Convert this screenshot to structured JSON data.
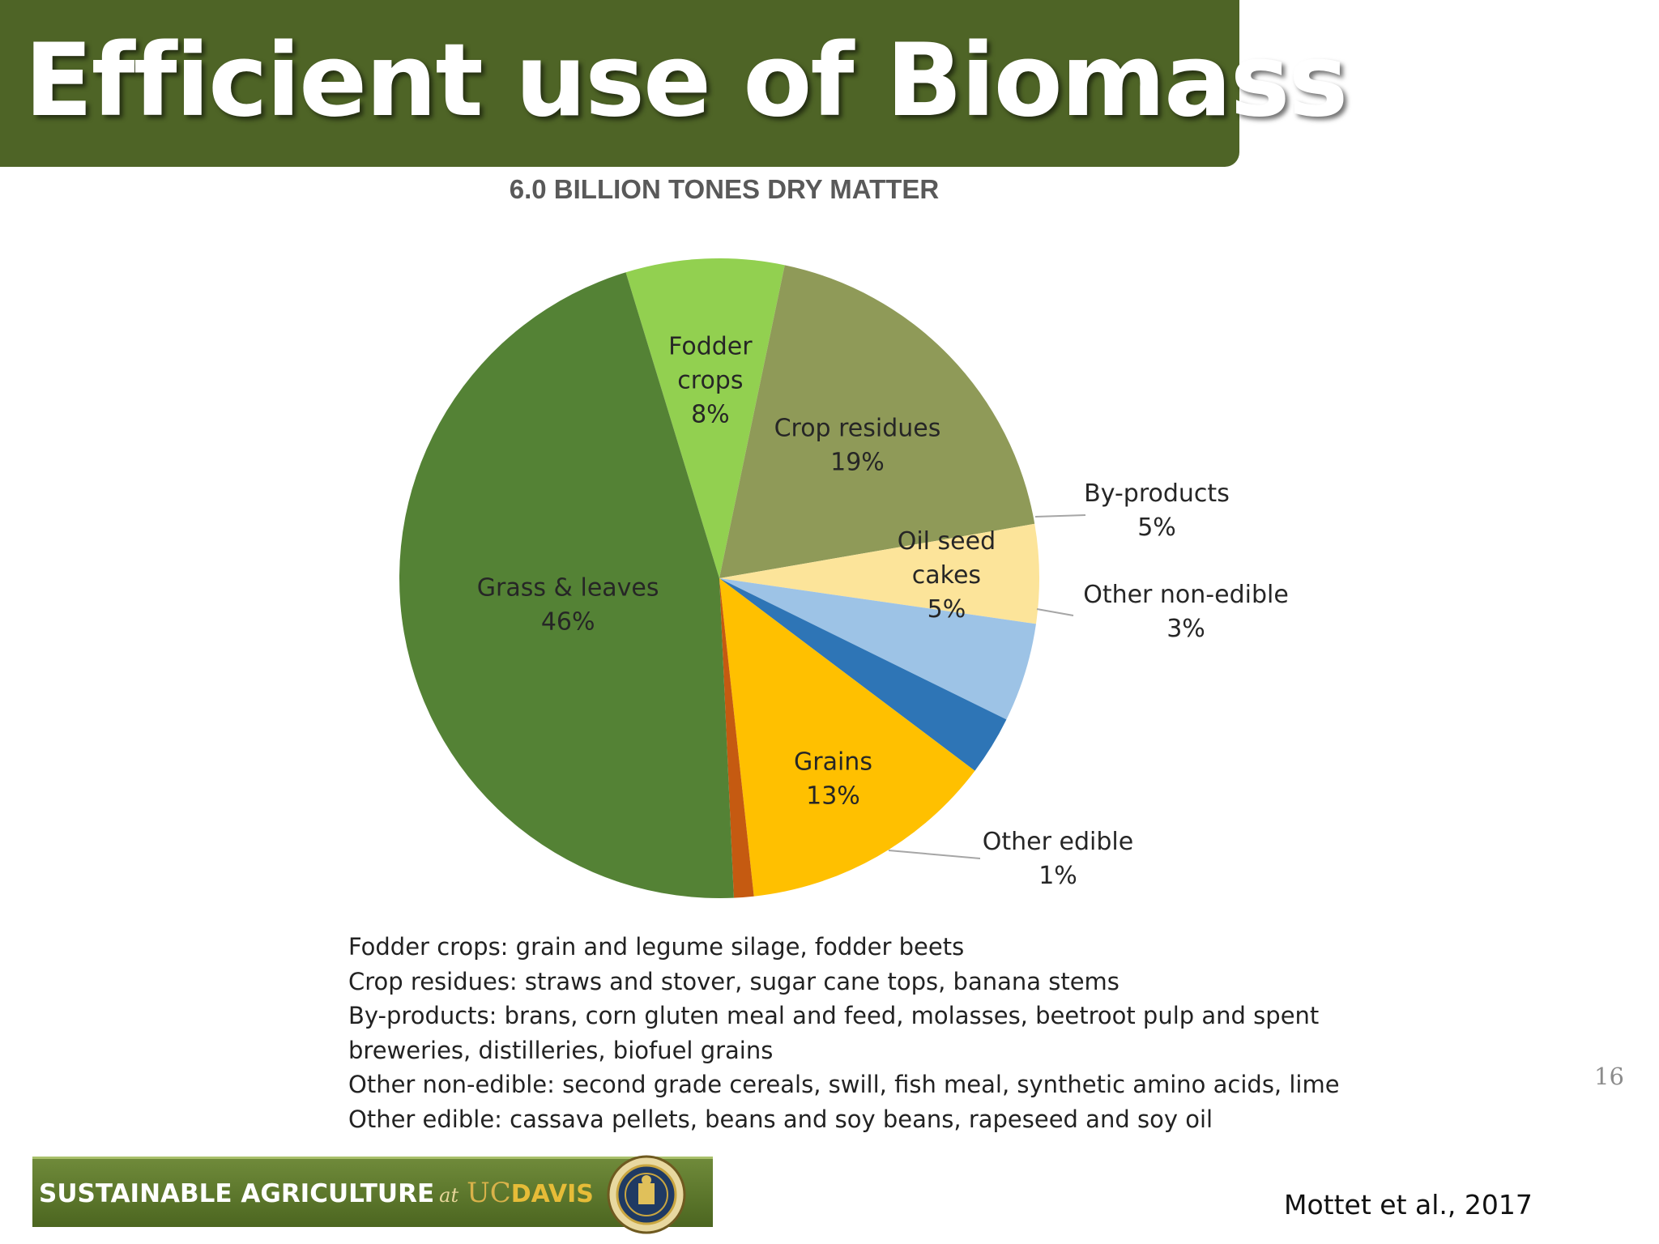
{
  "slide": {
    "title": "Efficient use of Biomass",
    "page_number": "16",
    "citation": "Mottet et al., 2017"
  },
  "chart_data": {
    "type": "pie",
    "title": "6.0 BILLION TONES DRY MATTER",
    "slices": [
      {
        "label_lines": [
          "Fodder",
          "crops"
        ],
        "value_label": "8%",
        "value": 8,
        "color": "#92d050"
      },
      {
        "label_lines": [
          "Crop residues"
        ],
        "value_label": "19%",
        "value": 19,
        "color": "#8f9a58"
      },
      {
        "label_lines": [
          "Oil seed",
          "cakes"
        ],
        "value_label": "5%",
        "value": 5,
        "color": "#fce49a"
      },
      {
        "label_lines": [
          "By-products"
        ],
        "value_label": "5%",
        "value": 5,
        "color": "#9dc3e6"
      },
      {
        "label_lines": [
          "Other non-edible"
        ],
        "value_label": "3%",
        "value": 3,
        "color": "#2e75b6"
      },
      {
        "label_lines": [
          "Grains"
        ],
        "value_label": "13%",
        "value": 13,
        "color": "#ffc000"
      },
      {
        "label_lines": [
          "Other edible"
        ],
        "value_label": "1%",
        "value": 1,
        "color": "#c55a11"
      },
      {
        "label_lines": [
          "Grass & leaves"
        ],
        "value_label": "46%",
        "value": 46,
        "color": "#548235"
      }
    ]
  },
  "notes": [
    "Fodder crops: grain and legume silage, fodder beets",
    "Crop residues: straws and stover, sugar cane tops, banana stems",
    "By-products: brans, corn gluten meal and feed, molasses, beetroot pulp and spent",
    "breweries, distilleries, biofuel grains",
    "Other non-edible: second grade cereals, swill, fish meal, synthetic amino acids, lime",
    "Other edible: cassava pellets, beans and soy beans, rapeseed and soy oil"
  ],
  "footer": {
    "program": "SUSTAINABLE  AGRICULTURE",
    "at": "at",
    "uc": "UC",
    "davis": "DAVIS",
    "colors": {
      "banner": "#4c6620",
      "accent": "#e6bc38"
    }
  }
}
